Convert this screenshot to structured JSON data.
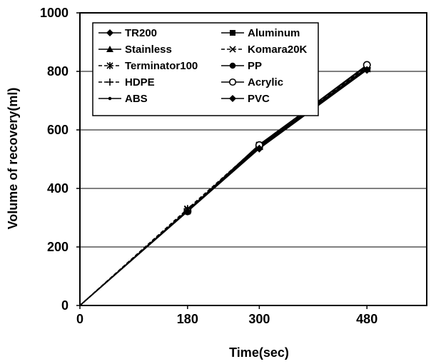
{
  "chart_data": {
    "type": "line",
    "title": "",
    "xlabel": "Time(sec)",
    "ylabel": "Volume of recovery(ml)",
    "xlim": [
      0,
      580
    ],
    "ylim": [
      0,
      1000
    ],
    "x_ticks": [
      0,
      180,
      300,
      480
    ],
    "x_tick_labels": [
      "0",
      "180",
      "300",
      "480"
    ],
    "y_ticks": [
      0,
      200,
      400,
      600,
      800,
      1000
    ],
    "y_tick_labels": [
      "0",
      "200",
      "400",
      "600",
      "800",
      "1000"
    ],
    "grid": "horizontal",
    "legend_position": "top-left",
    "x": [
      0,
      180,
      300,
      480
    ],
    "series": [
      {
        "name": "TR200",
        "marker": "diamond",
        "dash": "solid",
        "values": [
          0,
          325,
          540,
          810
        ]
      },
      {
        "name": "Aluminum",
        "marker": "square",
        "dash": "solid",
        "values": [
          0,
          322,
          545,
          812
        ]
      },
      {
        "name": "Stainless",
        "marker": "triangle",
        "dash": "solid",
        "values": [
          0,
          326,
          542,
          808
        ]
      },
      {
        "name": "Komara20K",
        "marker": "x",
        "dash": "dashed",
        "values": [
          0,
          330,
          548,
          815
        ]
      },
      {
        "name": "Terminator100",
        "marker": "asterisk",
        "dash": "dashed",
        "values": [
          0,
          328,
          546,
          810
        ]
      },
      {
        "name": "PP",
        "marker": "circle-filled",
        "dash": "solid",
        "values": [
          0,
          324,
          550,
          818
        ]
      },
      {
        "name": "HDPE",
        "marker": "plus",
        "dash": "dashed",
        "values": [
          0,
          330,
          544,
          812
        ]
      },
      {
        "name": "Acrylic",
        "marker": "circle-open",
        "dash": "solid",
        "values": [
          0,
          322,
          548,
          822
        ]
      },
      {
        "name": "ABS",
        "marker": "dot",
        "dash": "solid",
        "values": [
          0,
          323,
          538,
          806
        ]
      },
      {
        "name": "PVC",
        "marker": "diamond",
        "dash": "solid",
        "values": [
          0,
          321,
          536,
          805
        ]
      }
    ]
  }
}
